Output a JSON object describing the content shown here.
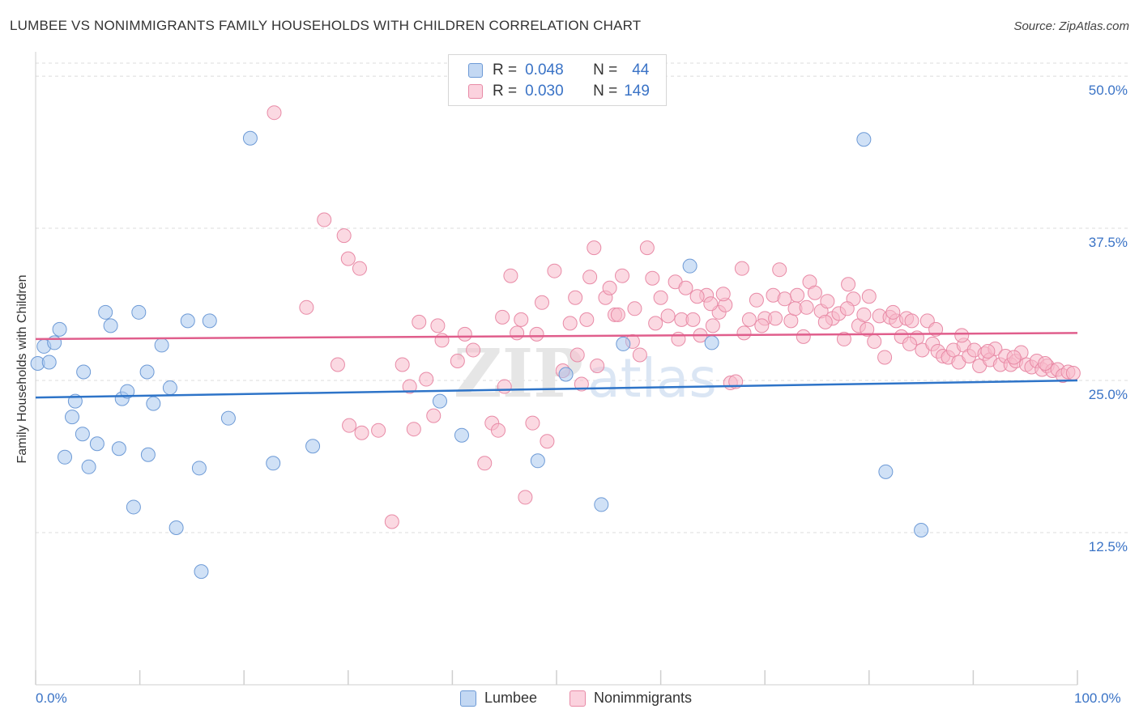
{
  "title": "LUMBEE VS NONIMMIGRANTS FAMILY HOUSEHOLDS WITH CHILDREN CORRELATION CHART",
  "source": "Source: ZipAtlas.com",
  "watermark": {
    "zip": "ZIP",
    "atlas": "atlas"
  },
  "legend": {
    "r_label": "R =",
    "n_label": "N =",
    "rows": [
      {
        "r": "0.048",
        "n": "44"
      },
      {
        "r": "0.030",
        "n": "149"
      }
    ]
  },
  "chart_data": {
    "type": "scatter",
    "title": "LUMBEE VS NONIMMIGRANTS FAMILY HOUSEHOLDS WITH CHILDREN CORRELATION CHART",
    "xlabel": "",
    "ylabel": "Family Households with Children",
    "xlim": [
      0,
      100
    ],
    "ylim": [
      0,
      52
    ],
    "x_tick_labels": [
      "0.0%",
      "100.0%"
    ],
    "y_ticks": [
      12.5,
      25.0,
      37.5,
      50.0
    ],
    "y_tick_labels": [
      "12.5%",
      "25.0%",
      "37.5%",
      "50.0%"
    ],
    "grid": true,
    "series": [
      {
        "name": "Lumbee",
        "color": "#a9c8ef",
        "stroke": "#6d9ad6",
        "line_color": "#2e74c8",
        "trend": {
          "x": [
            0,
            100
          ],
          "y": [
            23.6,
            25.0
          ]
        },
        "points": [
          [
            0.2,
            26.4
          ],
          [
            0.8,
            27.8
          ],
          [
            1.3,
            26.5
          ],
          [
            1.8,
            28.1
          ],
          [
            2.3,
            29.2
          ],
          [
            2.8,
            18.7
          ],
          [
            3.5,
            22.0
          ],
          [
            3.8,
            23.3
          ],
          [
            4.5,
            20.6
          ],
          [
            4.6,
            25.7
          ],
          [
            5.1,
            17.9
          ],
          [
            5.9,
            19.8
          ],
          [
            6.7,
            30.6
          ],
          [
            7.2,
            29.5
          ],
          [
            8.0,
            19.4
          ],
          [
            8.3,
            23.5
          ],
          [
            8.8,
            24.1
          ],
          [
            9.4,
            14.6
          ],
          [
            9.9,
            30.6
          ],
          [
            10.7,
            25.7
          ],
          [
            10.8,
            18.9
          ],
          [
            11.3,
            23.1
          ],
          [
            12.1,
            27.9
          ],
          [
            12.9,
            24.4
          ],
          [
            13.5,
            12.9
          ],
          [
            14.6,
            29.9
          ],
          [
            15.7,
            17.8
          ],
          [
            15.9,
            9.3
          ],
          [
            16.7,
            29.9
          ],
          [
            18.5,
            21.9
          ],
          [
            20.6,
            44.9
          ],
          [
            22.8,
            18.2
          ],
          [
            26.6,
            19.6
          ],
          [
            38.8,
            23.3
          ],
          [
            40.9,
            20.5
          ],
          [
            48.2,
            18.4
          ],
          [
            50.9,
            25.5
          ],
          [
            54.3,
            14.8
          ],
          [
            56.4,
            28.0
          ],
          [
            62.8,
            34.4
          ],
          [
            64.9,
            28.1
          ],
          [
            79.5,
            44.8
          ],
          [
            81.6,
            17.5
          ],
          [
            85.0,
            12.7
          ]
        ]
      },
      {
        "name": "Nonimmigrants",
        "color": "#f7b9cb",
        "stroke": "#e88aa6",
        "line_color": "#e05e8c",
        "trend": {
          "x": [
            0,
            100
          ],
          "y": [
            28.4,
            28.9
          ]
        },
        "points": [
          [
            22.9,
            47.0
          ],
          [
            27.7,
            38.2
          ],
          [
            29.6,
            36.9
          ],
          [
            30.0,
            35.0
          ],
          [
            31.1,
            34.2
          ],
          [
            26.0,
            31.0
          ],
          [
            29.0,
            26.3
          ],
          [
            30.1,
            21.3
          ],
          [
            31.3,
            20.7
          ],
          [
            32.9,
            20.9
          ],
          [
            34.2,
            13.4
          ],
          [
            35.2,
            26.3
          ],
          [
            35.9,
            24.5
          ],
          [
            36.3,
            21.0
          ],
          [
            37.5,
            25.1
          ],
          [
            38.2,
            22.1
          ],
          [
            39.0,
            28.3
          ],
          [
            40.5,
            26.6
          ],
          [
            41.2,
            28.8
          ],
          [
            42.0,
            27.5
          ],
          [
            43.1,
            18.2
          ],
          [
            43.8,
            21.5
          ],
          [
            44.4,
            20.9
          ],
          [
            45.0,
            24.5
          ],
          [
            45.6,
            33.6
          ],
          [
            46.6,
            30.0
          ],
          [
            47.0,
            15.4
          ],
          [
            47.7,
            21.5
          ],
          [
            48.1,
            28.8
          ],
          [
            49.1,
            20.0
          ],
          [
            49.8,
            34.0
          ],
          [
            50.6,
            25.8
          ],
          [
            51.3,
            29.7
          ],
          [
            52.0,
            27.1
          ],
          [
            52.4,
            24.7
          ],
          [
            52.9,
            30.0
          ],
          [
            53.6,
            35.9
          ],
          [
            53.9,
            26.2
          ],
          [
            54.7,
            31.8
          ],
          [
            55.1,
            32.6
          ],
          [
            55.6,
            30.4
          ],
          [
            56.3,
            33.6
          ],
          [
            57.3,
            28.2
          ],
          [
            58.0,
            27.1
          ],
          [
            58.7,
            35.9
          ],
          [
            59.5,
            29.7
          ],
          [
            60.0,
            31.8
          ],
          [
            60.7,
            30.3
          ],
          [
            61.4,
            33.1
          ],
          [
            62.0,
            30.0
          ],
          [
            62.4,
            32.6
          ],
          [
            63.1,
            30.0
          ],
          [
            63.8,
            28.7
          ],
          [
            64.4,
            32.0
          ],
          [
            65.0,
            29.5
          ],
          [
            65.6,
            30.6
          ],
          [
            66.2,
            31.2
          ],
          [
            66.7,
            24.8
          ],
          [
            67.2,
            24.9
          ],
          [
            67.8,
            34.2
          ],
          [
            68.5,
            30.0
          ],
          [
            69.2,
            31.6
          ],
          [
            70.0,
            30.1
          ],
          [
            70.8,
            32.0
          ],
          [
            71.4,
            34.1
          ],
          [
            71.9,
            31.7
          ],
          [
            72.5,
            29.9
          ],
          [
            73.1,
            32.0
          ],
          [
            73.7,
            28.6
          ],
          [
            74.3,
            33.1
          ],
          [
            74.8,
            32.2
          ],
          [
            75.4,
            30.7
          ],
          [
            76.0,
            31.5
          ],
          [
            76.5,
            30.1
          ],
          [
            77.1,
            30.5
          ],
          [
            77.6,
            28.4
          ],
          [
            78.0,
            32.9
          ],
          [
            78.5,
            31.7
          ],
          [
            79.0,
            29.5
          ],
          [
            79.5,
            30.4
          ],
          [
            80.0,
            31.9
          ],
          [
            80.5,
            28.2
          ],
          [
            81.0,
            30.3
          ],
          [
            81.5,
            26.9
          ],
          [
            82.0,
            30.2
          ],
          [
            82.6,
            29.9
          ],
          [
            83.1,
            28.6
          ],
          [
            83.6,
            30.1
          ],
          [
            84.1,
            29.9
          ],
          [
            84.6,
            28.5
          ],
          [
            85.1,
            27.5
          ],
          [
            85.6,
            29.9
          ],
          [
            86.1,
            28.0
          ],
          [
            86.6,
            27.4
          ],
          [
            87.1,
            27.0
          ],
          [
            87.6,
            26.9
          ],
          [
            88.1,
            27.5
          ],
          [
            88.6,
            26.5
          ],
          [
            89.1,
            27.9
          ],
          [
            89.6,
            27.0
          ],
          [
            90.1,
            27.5
          ],
          [
            90.6,
            26.2
          ],
          [
            91.1,
            27.2
          ],
          [
            91.6,
            26.7
          ],
          [
            92.1,
            27.6
          ],
          [
            92.6,
            26.3
          ],
          [
            93.1,
            27.0
          ],
          [
            93.6,
            26.3
          ],
          [
            94.1,
            26.6
          ],
          [
            94.6,
            27.3
          ],
          [
            95.1,
            26.3
          ],
          [
            95.6,
            26.1
          ],
          [
            96.1,
            26.6
          ],
          [
            96.6,
            25.9
          ],
          [
            97.1,
            26.2
          ],
          [
            97.6,
            25.8
          ],
          [
            98.1,
            25.9
          ],
          [
            98.6,
            25.4
          ],
          [
            99.1,
            25.7
          ],
          [
            99.6,
            25.6
          ],
          [
            36.8,
            29.8
          ],
          [
            38.6,
            29.5
          ],
          [
            44.8,
            30.2
          ],
          [
            46.2,
            28.9
          ],
          [
            48.6,
            31.4
          ],
          [
            51.8,
            31.8
          ],
          [
            53.2,
            33.5
          ],
          [
            55.9,
            30.4
          ],
          [
            57.5,
            30.9
          ],
          [
            59.2,
            33.4
          ],
          [
            61.7,
            28.4
          ],
          [
            63.5,
            31.9
          ],
          [
            64.8,
            31.3
          ],
          [
            66.0,
            32.1
          ],
          [
            68.0,
            28.9
          ],
          [
            69.7,
            29.5
          ],
          [
            71.0,
            30.1
          ],
          [
            72.9,
            30.9
          ],
          [
            74.0,
            31.0
          ],
          [
            75.8,
            29.8
          ],
          [
            77.9,
            30.9
          ],
          [
            79.8,
            29.2
          ],
          [
            82.3,
            30.6
          ],
          [
            83.9,
            28.0
          ],
          [
            86.4,
            29.2
          ],
          [
            88.9,
            28.7
          ],
          [
            91.4,
            27.4
          ],
          [
            93.9,
            26.9
          ],
          [
            96.9,
            26.4
          ]
        ]
      }
    ]
  }
}
